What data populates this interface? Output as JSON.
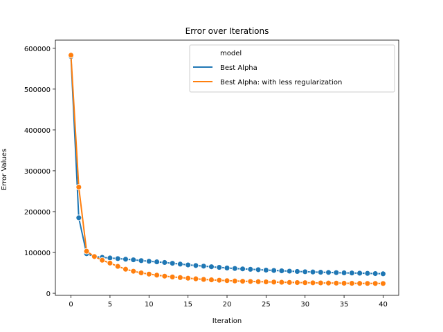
{
  "chart_data": {
    "type": "line",
    "title": "Error over Iterations",
    "xlabel": "Iteration",
    "ylabel": "Error Values",
    "xlim": [
      -2,
      42
    ],
    "ylim": [
      -5000,
      620000
    ],
    "xticks": [
      0,
      5,
      10,
      15,
      20,
      25,
      30,
      35,
      40
    ],
    "yticks": [
      0,
      100000,
      200000,
      300000,
      400000,
      500000,
      600000
    ],
    "legend": {
      "title": "model",
      "placement": "top-right"
    },
    "grid": false,
    "markers": "o",
    "x": [
      0,
      1,
      2,
      3,
      4,
      5,
      6,
      7,
      8,
      9,
      10,
      11,
      12,
      13,
      14,
      15,
      16,
      17,
      18,
      19,
      20,
      21,
      22,
      23,
      24,
      25,
      26,
      27,
      28,
      29,
      30,
      31,
      32,
      33,
      34,
      35,
      36,
      37,
      38,
      39,
      40
    ],
    "series": [
      {
        "name": "Best Alpha",
        "color": "#1f77b4",
        "values": [
          580000,
          185000,
          97000,
          90000,
          88000,
          86500,
          85000,
          83500,
          82000,
          80000,
          78500,
          77000,
          75500,
          73500,
          71500,
          69500,
          68000,
          66500,
          65000,
          63500,
          62000,
          60800,
          59800,
          58800,
          57800,
          56800,
          55900,
          55100,
          54300,
          53500,
          52800,
          52200,
          51600,
          51100,
          50600,
          50100,
          49700,
          49300,
          48800,
          48300,
          47800
        ]
      },
      {
        "name": "Best Alpha: with less regularization",
        "color": "#ff7f0e",
        "values": [
          583000,
          260000,
          103000,
          90000,
          81000,
          74000,
          66000,
          59000,
          54000,
          50000,
          47000,
          44500,
          42000,
          40000,
          38500,
          37000,
          35500,
          34000,
          33000,
          32000,
          31000,
          30200,
          29500,
          29000,
          28500,
          28000,
          27500,
          27000,
          26600,
          26300,
          26000,
          25700,
          25400,
          25100,
          24900,
          24700,
          24500,
          24300,
          24200,
          24100,
          24000
        ]
      }
    ]
  }
}
